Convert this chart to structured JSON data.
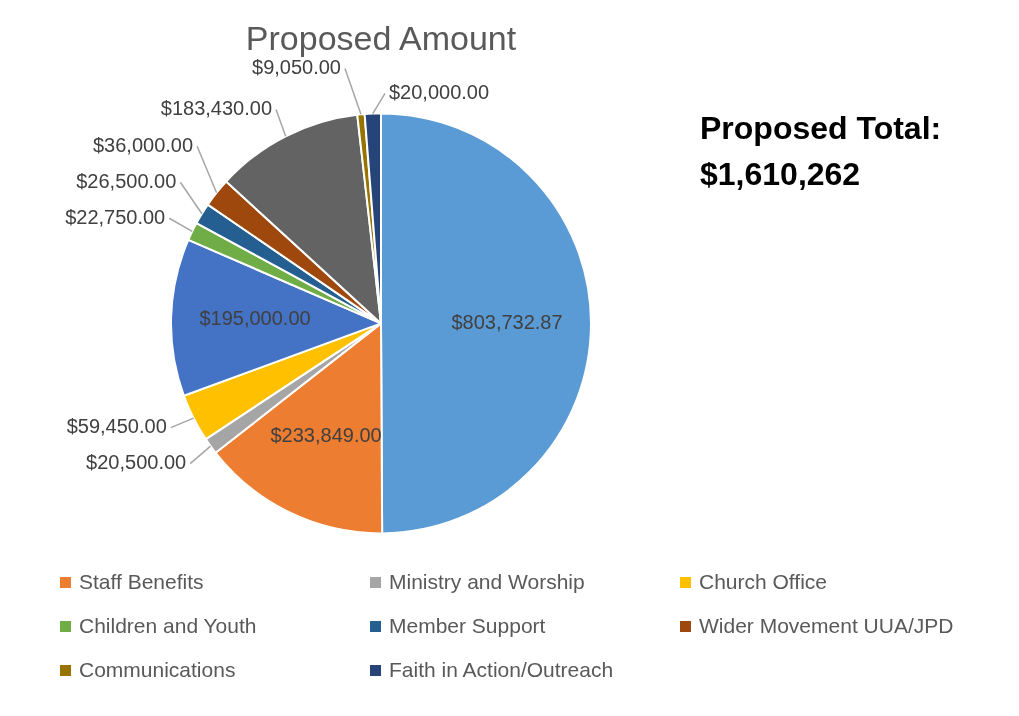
{
  "chart_data": {
    "type": "pie",
    "title": "Proposed Amount",
    "categories": [
      null,
      "Staff Benefits",
      "Ministry and Worship",
      "Church Office",
      null,
      "Children and Youth",
      "Member Support",
      "Wider Movement UUA/JPD",
      null,
      "Communications",
      "Faith in Action/Outreach"
    ],
    "values": [
      803732.87,
      233849,
      20500,
      59450,
      195000,
      22750,
      26500,
      36000,
      183430,
      9050,
      20000
    ],
    "value_labels": [
      "$803,732.87",
      "$233,849.00",
      "$20,500.00",
      "$59,450.00",
      "$195,000.00",
      "$22,750.00",
      "$26,500.00",
      "$36,000.00",
      "$183,430.00",
      "$9,050.00",
      "$20,000.00"
    ],
    "colors": [
      "#5b9bd5",
      "#ed7d31",
      "#a5a5a5",
      "#ffc000",
      "#4472c4",
      "#70ad47",
      "#255e91",
      "#9e480e",
      "#636363",
      "#997300",
      "#264478"
    ],
    "annotations": [
      "Proposed Total:\n$1,610,262"
    ],
    "legend": "bottom"
  }
}
